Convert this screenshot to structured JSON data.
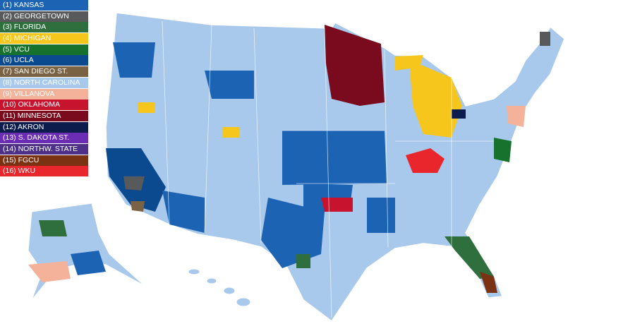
{
  "legend": [
    {
      "label": "(1) KANSAS",
      "color": "#1d63b4"
    },
    {
      "label": "(2) GEORGETOWN",
      "color": "#58595b"
    },
    {
      "label": "(3) FLORIDA",
      "color": "#2f6f3e"
    },
    {
      "label": "(4) MICHIGAN",
      "color": "#f6c61d"
    },
    {
      "label": "(5) VCU",
      "color": "#16722c"
    },
    {
      "label": "(6) UCLA",
      "color": "#0b4a8e"
    },
    {
      "label": "(7) SAN DIEGO ST.",
      "color": "#7a6245"
    },
    {
      "label": "(8) NORTH CAROLINA",
      "color": "#a8c9ec"
    },
    {
      "label": "(9) VILLANOVA",
      "color": "#f5b29a"
    },
    {
      "label": "(10) OKLAHOMA",
      "color": "#c8132f"
    },
    {
      "label": "(11) MINNESOTA",
      "color": "#7a0b1f"
    },
    {
      "label": "(12) AKRON",
      "color": "#0c1c4c"
    },
    {
      "label": "(13) S. DAKOTA ST.",
      "color": "#6a2db3"
    },
    {
      "label": "(14) NORTHW. STATE",
      "color": "#4d3188"
    },
    {
      "label": "(15) FGCU",
      "color": "#7b3212"
    },
    {
      "label": "(16) WKU",
      "color": "#e9262c"
    }
  ]
}
